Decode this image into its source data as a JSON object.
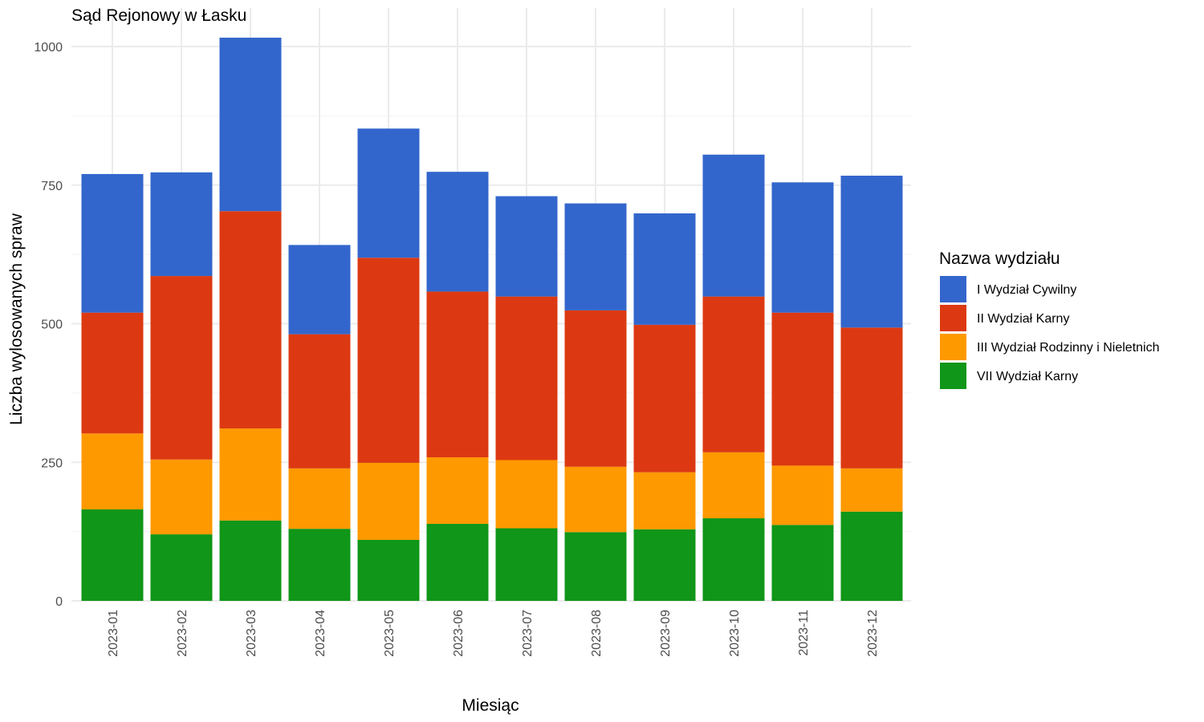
{
  "chart_data": {
    "type": "bar",
    "stacked": true,
    "title": "Sąd Rejonowy w Łasku",
    "xlabel": "Miesiąc",
    "ylabel": "Liczba wylosowanych spraw",
    "ylim": [
      0,
      1050
    ],
    "yticks": [
      0,
      250,
      500,
      750,
      1000
    ],
    "grid": true,
    "legend": {
      "title": "Nazwa wydziału",
      "position": "right"
    },
    "categories": [
      "2023-01",
      "2023-02",
      "2023-03",
      "2023-04",
      "2023-05",
      "2023-06",
      "2023-07",
      "2023-08",
      "2023-09",
      "2023-10",
      "2023-11",
      "2023-12"
    ],
    "series": [
      {
        "name": "I Wydział Cywilny",
        "color": "#3366CC",
        "values": [
          250,
          187,
          313,
          161,
          233,
          216,
          181,
          193,
          201,
          256,
          235,
          274
        ]
      },
      {
        "name": "II Wydział Karny",
        "color": "#DC3912",
        "values": [
          218,
          331,
          392,
          242,
          370,
          299,
          295,
          282,
          266,
          281,
          276,
          254
        ]
      },
      {
        "name": "III Wydział Rodzinny i Nieletnich",
        "color": "#FF9900",
        "values": [
          137,
          135,
          166,
          109,
          139,
          120,
          123,
          118,
          103,
          119,
          107,
          78
        ]
      },
      {
        "name": "VII Wydział Karny",
        "color": "#109618",
        "values": [
          165,
          120,
          145,
          130,
          110,
          139,
          131,
          124,
          129,
          149,
          137,
          161
        ]
      }
    ]
  }
}
